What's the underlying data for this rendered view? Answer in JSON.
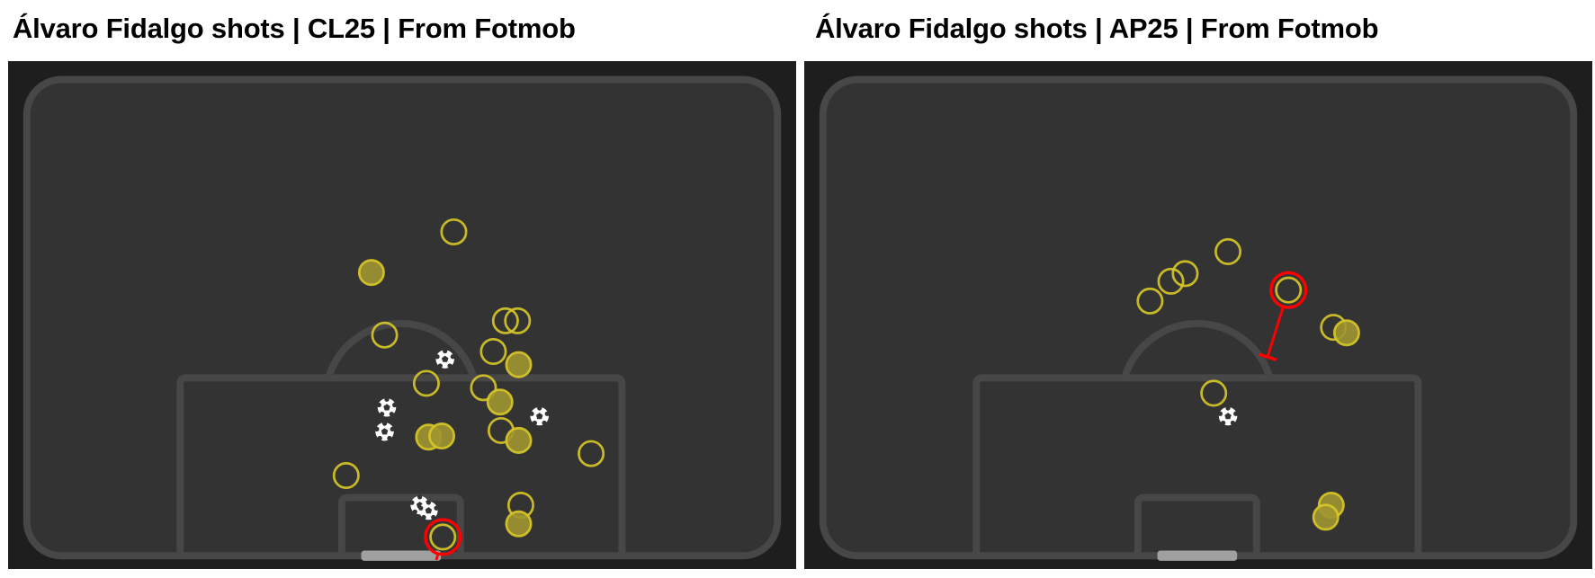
{
  "colors": {
    "background": "#1e1e1e",
    "pitch": "#333333",
    "lines": "#474747",
    "goal": "#a0a0a0",
    "shot_stroke": "#d8c828",
    "shot_fill_on_target": "#a09530",
    "highlight": "#ff0000",
    "goal_icon": "#ffffff"
  },
  "legend_semantics": {
    "hollow": "miss",
    "filled": "on-target",
    "ball-icon": "goal"
  },
  "chart_data": [
    {
      "type": "scatter",
      "title": "Álvaro Fidalgo shots | CL25 | From Fotmob",
      "units": "meters (x = lateral from goal centre, y = distance from goal line)",
      "shots": [
        {
          "x": 4.8,
          "y": 29.6,
          "result": "miss"
        },
        {
          "x": -2.7,
          "y": 25.9,
          "result": "on-target"
        },
        {
          "x": -1.5,
          "y": 20.2,
          "result": "miss"
        },
        {
          "x": 9.5,
          "y": 21.5,
          "result": "miss"
        },
        {
          "x": 10.6,
          "y": 21.5,
          "result": "miss"
        },
        {
          "x": 8.4,
          "y": 18.7,
          "result": "miss"
        },
        {
          "x": 10.7,
          "y": 17.5,
          "result": "on-target"
        },
        {
          "x": 4.0,
          "y": 18.0,
          "result": "goal"
        },
        {
          "x": 2.3,
          "y": 15.8,
          "result": "miss"
        },
        {
          "x": 7.5,
          "y": 15.4,
          "result": "miss"
        },
        {
          "x": 9.0,
          "y": 14.1,
          "result": "on-target"
        },
        {
          "x": -1.3,
          "y": 13.6,
          "result": "goal"
        },
        {
          "x": -1.5,
          "y": 11.4,
          "result": "goal"
        },
        {
          "x": 12.6,
          "y": 12.8,
          "result": "goal"
        },
        {
          "x": 2.5,
          "y": 10.9,
          "result": "on-target"
        },
        {
          "x": 3.7,
          "y": 11.0,
          "result": "on-target"
        },
        {
          "x": 9.1,
          "y": 11.5,
          "result": "miss"
        },
        {
          "x": 10.7,
          "y": 10.6,
          "result": "on-target"
        },
        {
          "x": 17.3,
          "y": 9.4,
          "result": "miss"
        },
        {
          "x": -5.0,
          "y": 7.4,
          "result": "miss"
        },
        {
          "x": 1.7,
          "y": 4.7,
          "result": "goal"
        },
        {
          "x": 2.5,
          "y": 4.2,
          "result": "goal"
        },
        {
          "x": 10.9,
          "y": 4.7,
          "result": "miss"
        },
        {
          "x": 10.7,
          "y": 3.0,
          "result": "on-target"
        },
        {
          "x": 3.8,
          "y": 1.8,
          "result": "miss",
          "highlighted": true,
          "end": {
            "x": 3.2,
            "y": -0.3
          }
        }
      ]
    },
    {
      "type": "scatter",
      "title": "Álvaro Fidalgo shots | AP25 | From Fotmob",
      "units": "meters (x = lateral from goal centre, y = distance from goal line)",
      "shots": [
        {
          "x": 2.8,
          "y": 27.8,
          "result": "miss"
        },
        {
          "x": -1.1,
          "y": 25.8,
          "result": "miss"
        },
        {
          "x": -2.4,
          "y": 25.1,
          "result": "miss"
        },
        {
          "x": -4.3,
          "y": 23.3,
          "result": "miss"
        },
        {
          "x": 8.3,
          "y": 24.3,
          "result": "miss",
          "highlighted": true,
          "end": {
            "x": 6.4,
            "y": 18.2
          },
          "blocked": true
        },
        {
          "x": 12.4,
          "y": 20.9,
          "result": "miss"
        },
        {
          "x": 13.6,
          "y": 20.4,
          "result": "on-target"
        },
        {
          "x": 1.5,
          "y": 14.9,
          "result": "miss"
        },
        {
          "x": 2.8,
          "y": 12.8,
          "result": "goal"
        },
        {
          "x": 12.2,
          "y": 4.7,
          "result": "on-target"
        },
        {
          "x": 11.7,
          "y": 3.6,
          "result": "on-target"
        }
      ]
    }
  ]
}
